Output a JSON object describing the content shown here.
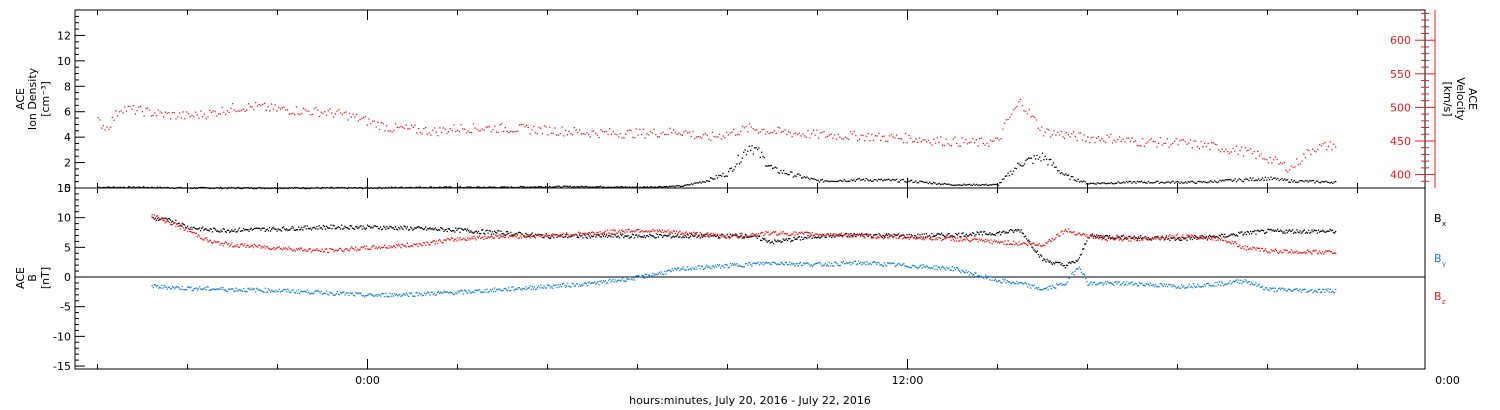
{
  "chart_data": [
    {
      "type": "scatter",
      "panel": "top",
      "ylabel_left": [
        "ACE",
        "Ion Density",
        "[cm⁻³]"
      ],
      "ylabel_right": [
        "ACE",
        "Velocity",
        "[km/s]"
      ],
      "y_left_ticks": [
        "0",
        "2",
        "4",
        "6",
        "8",
        "10",
        "12"
      ],
      "y_left_range": [
        0,
        14
      ],
      "y_right_ticks": [
        "400",
        "450",
        "500",
        "550",
        "600"
      ],
      "y_right_range": [
        380,
        645
      ],
      "colors": {
        "density": "#000000",
        "velocity": "#e02020"
      },
      "series": [
        {
          "axis": "left",
          "x": [
            -6,
            -5,
            -4,
            -3,
            -2,
            -1,
            0,
            1,
            2,
            3,
            4,
            5,
            6,
            7,
            7.5,
            8,
            8.5,
            9,
            10,
            11,
            12,
            13,
            14,
            14.5,
            15,
            15.5,
            16,
            17,
            18,
            18.5,
            19,
            19.5,
            20,
            20.5,
            21.5
          ],
          "y": [
            0.1,
            0.1,
            0.05,
            0.05,
            0.05,
            0.05,
            0.05,
            0.1,
            0.1,
            0.1,
            0.15,
            0.15,
            0.1,
            0.2,
            0.6,
            1.2,
            3.5,
            1.5,
            0.6,
            0.7,
            0.6,
            0.3,
            0.3,
            2.0,
            2.5,
            1.0,
            0.4,
            0.5,
            0.5,
            0.5,
            0.6,
            0.7,
            0.8,
            0.6,
            0.5
          ]
        },
        {
          "axis": "right",
          "x": [
            -6,
            -5.8,
            -5.5,
            -5,
            -4.5,
            -4,
            -3.5,
            -3,
            -2.5,
            -2,
            -1.5,
            -1,
            -0.5,
            0,
            0.5,
            1,
            1.5,
            2,
            3,
            4,
            5,
            6,
            7,
            7.5,
            8,
            8.5,
            9,
            10,
            11,
            11.5,
            12,
            12.5,
            13,
            13.5,
            14,
            14.2,
            14.5,
            15,
            15.5,
            16,
            16.5,
            17,
            18,
            18.5,
            19,
            19.5,
            20,
            20.5,
            21,
            21.5
          ],
          "y": [
            480,
            470,
            500,
            495,
            490,
            488,
            492,
            500,
            502,
            498,
            496,
            494,
            490,
            480,
            470,
            468,
            465,
            470,
            470,
            467,
            463,
            462,
            465,
            455,
            462,
            470,
            465,
            460,
            458,
            456,
            455,
            452,
            450,
            448,
            450,
            480,
            510,
            465,
            460,
            455,
            455,
            450,
            448,
            445,
            440,
            435,
            425,
            410,
            440,
            445
          ]
        }
      ]
    },
    {
      "type": "line",
      "panel": "bottom",
      "ylabel": [
        "ACE",
        "B",
        "[nT]"
      ],
      "y_ticks": [
        "-15",
        "-10",
        "-5",
        "0",
        "5",
        "10",
        "15"
      ],
      "y_range": [
        -15.5,
        15
      ],
      "legend": [
        "B",
        "B",
        "B"
      ],
      "legend_subscripts": [
        "x",
        "y",
        "z"
      ],
      "legend_colors": [
        "#000000",
        "#1a7fd0",
        "#e02020"
      ],
      "series": [
        {
          "name": "B",
          "color": "#000000",
          "x": [
            -4.8,
            -4.3,
            -4,
            -3.5,
            -3,
            -2,
            -1,
            0,
            1,
            2,
            3,
            4,
            5,
            6,
            7,
            8,
            8.5,
            9,
            10,
            11,
            12,
            13,
            14,
            14.5,
            15,
            15.5,
            15.8,
            16,
            17,
            18,
            19,
            19.5,
            20,
            21,
            21.5
          ],
          "y": [
            10,
            9.5,
            8.5,
            8,
            8,
            8.2,
            8.5,
            8.5,
            8.3,
            8,
            7.5,
            7,
            7,
            7,
            7,
            7,
            7,
            6,
            7,
            7.2,
            7,
            7.2,
            7.5,
            8,
            3,
            2,
            3,
            7,
            6.8,
            6.5,
            7,
            7.5,
            7.8,
            7.8,
            7.8
          ]
        },
        {
          "name": "B",
          "color": "#1a7fd0",
          "x": [
            -4.8,
            -4,
            -3,
            -2,
            -1,
            0,
            1,
            2,
            3,
            4,
            5,
            6,
            7,
            8,
            9,
            10,
            11,
            12,
            13,
            14,
            14.5,
            15,
            15.5,
            15.8,
            16,
            17,
            18,
            19,
            19.5,
            20,
            21,
            21.5
          ],
          "y": [
            -1.5,
            -1.8,
            -2,
            -2.2,
            -2.5,
            -3,
            -2.8,
            -2.5,
            -2,
            -1.5,
            -1,
            0,
            1.5,
            2,
            2.5,
            2.2,
            2.5,
            2,
            1.5,
            -0.5,
            -1,
            -2,
            -1,
            2,
            -1,
            -1,
            -1.5,
            -1,
            -0.5,
            -2,
            -2.2,
            -2.2
          ]
        },
        {
          "name": "B",
          "color": "#e02020",
          "x": [
            -4.8,
            -4,
            -3.5,
            -3,
            -2,
            -1,
            0,
            1,
            2,
            3,
            4,
            5,
            6,
            7,
            8,
            9,
            10,
            11,
            12,
            13,
            14,
            15,
            15.5,
            16,
            16.5,
            17,
            18,
            19,
            19.5,
            20,
            21,
            21.5
          ],
          "y": [
            10.5,
            8,
            6,
            5.5,
            5,
            4.5,
            5,
            5.5,
            6.5,
            7,
            7,
            7.5,
            8,
            7.5,
            7,
            7.5,
            7.3,
            7,
            6.8,
            6.5,
            6,
            5.5,
            8,
            7,
            6.5,
            6.5,
            7,
            6.5,
            5,
            4.5,
            4.3,
            4.3
          ]
        }
      ]
    }
  ],
  "x_axis": {
    "range_hours": [
      -6.5,
      23.5
    ],
    "tick_labels": [
      {
        "hour": 0,
        "text": "0:00"
      },
      {
        "hour": 12,
        "text": "12:00"
      },
      {
        "hour": 24,
        "text": "0:00"
      }
    ],
    "title": "hours:minutes, July 20, 2016 - July 22, 2016"
  }
}
